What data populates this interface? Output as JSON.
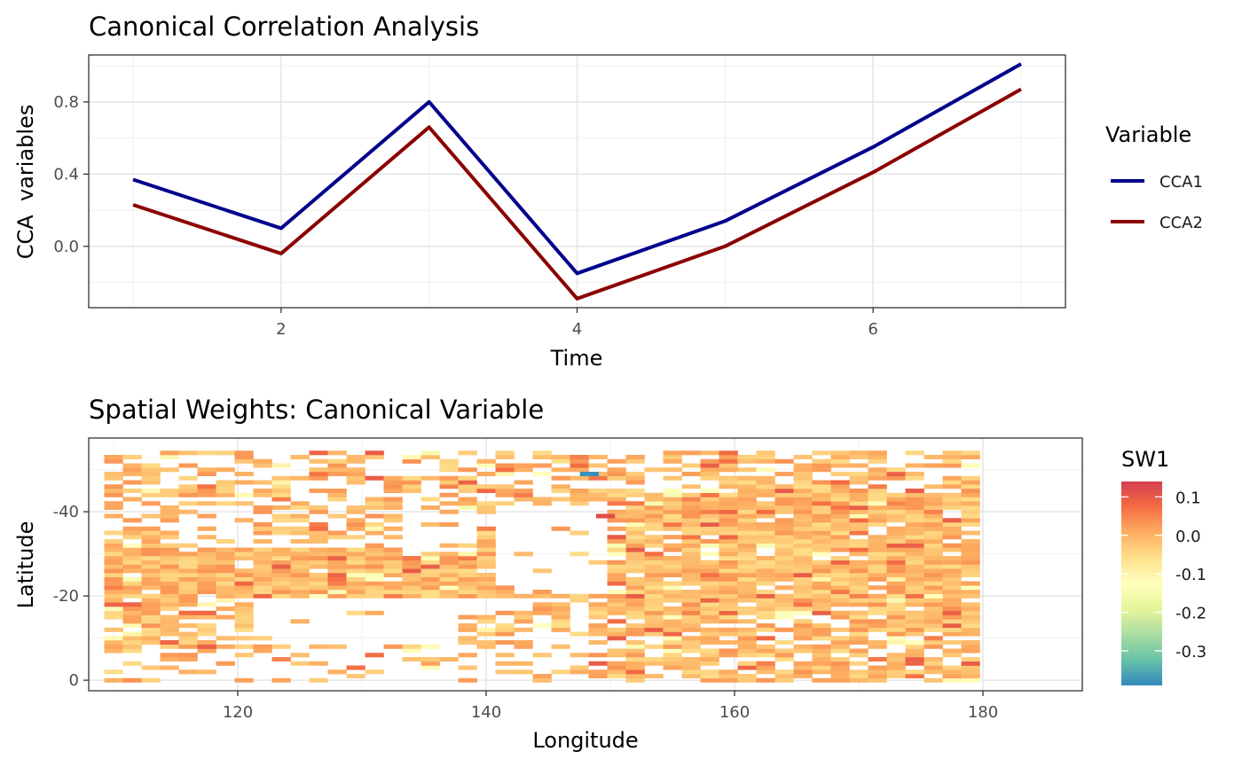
{
  "chart_data": [
    {
      "type": "line",
      "title": "Canonical Correlation Analysis",
      "xlabel": "Time",
      "ylabel": "CCA  variables",
      "xlim": [
        0.7,
        7.3
      ],
      "ylim": [
        -0.34,
        1.06
      ],
      "xticks": [
        2,
        4,
        6
      ],
      "yticks": [
        0.0,
        0.4,
        0.8
      ],
      "ytick_labels": [
        "0.0",
        "0.4",
        "0.8"
      ],
      "grid": true,
      "legend": {
        "title": "Variable",
        "position": "right"
      },
      "x": [
        1,
        2,
        3,
        4,
        5,
        6,
        7
      ],
      "series": [
        {
          "name": "CCA1",
          "color": "#00008B",
          "values": [
            0.37,
            0.1,
            0.8,
            -0.15,
            0.14,
            0.55,
            1.01
          ]
        },
        {
          "name": "CCA2",
          "color": "#8B0000",
          "values": [
            0.23,
            -0.04,
            0.66,
            -0.29,
            0.0,
            0.41,
            0.87
          ]
        }
      ]
    },
    {
      "type": "heatmap",
      "title": "Spatial Weights: Canonical Variable",
      "xlabel": "Longitude",
      "ylabel": "Latitude",
      "xlim": [
        108,
        188
      ],
      "ylim": [
        -2.5,
        57.5
      ],
      "xticks": [
        120,
        140,
        160,
        180
      ],
      "yticks": [
        0,
        20,
        40
      ],
      "ytick_labels": [
        "0",
        "-20",
        "-40"
      ],
      "grid": true,
      "legend": {
        "title": "SW1",
        "position": "right"
      },
      "color_scale": {
        "min": -0.39,
        "max": 0.14,
        "ticks": [
          0.1,
          0.0,
          -0.1,
          -0.2,
          -0.3
        ],
        "tick_labels": [
          "0.1",
          "0.0",
          "-0.1",
          "-0.2",
          "-0.3"
        ],
        "palette": [
          "#3288BD",
          "#66C2A5",
          "#ABDDA4",
          "#E6F598",
          "#FFFFBF",
          "#FEE08B",
          "#FDAE61",
          "#F46D43",
          "#D53E4F"
        ]
      },
      "cell_size": {
        "lon": 1.5,
        "lat": 1.0
      },
      "lon_range": [
        110,
        179
      ],
      "lat_range": [
        0,
        54
      ],
      "typical_value": -0.01,
      "outliers": [
        {
          "lon": 148.3,
          "lat": 49,
          "value": -0.38
        },
        {
          "lon": 149.6,
          "lat": 39,
          "value": 0.12
        }
      ]
    }
  ]
}
